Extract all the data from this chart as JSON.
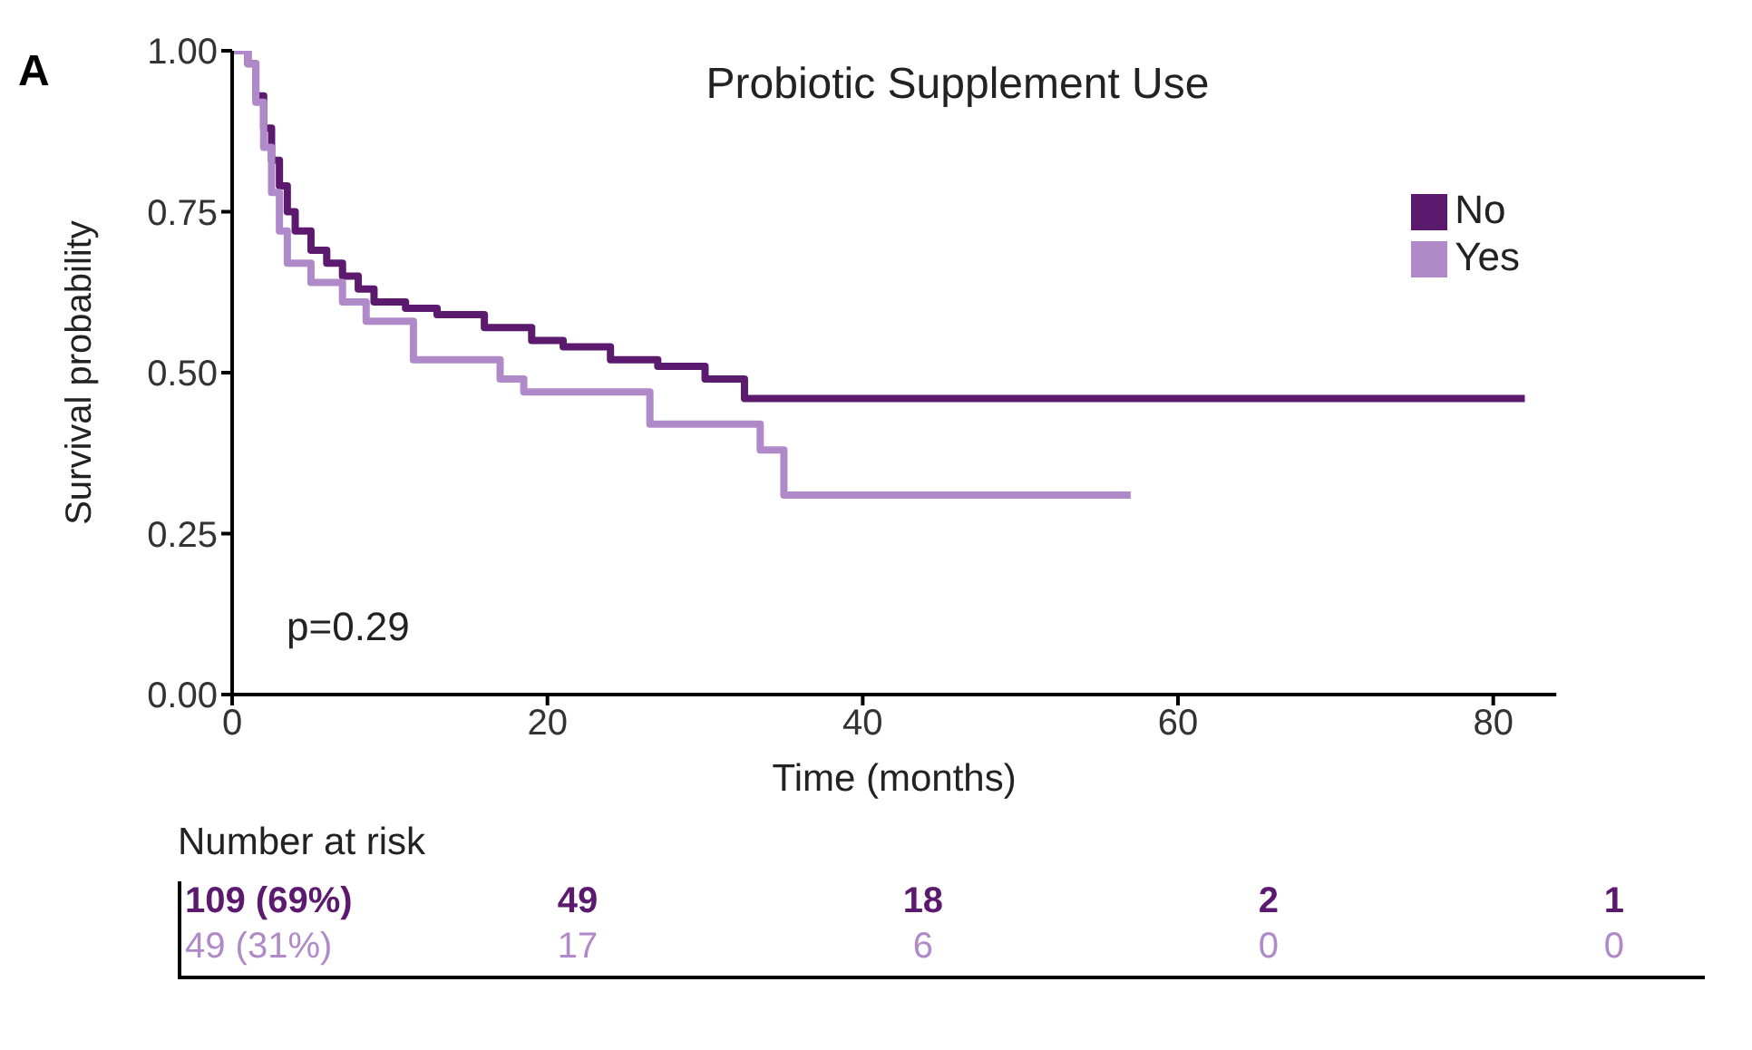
{
  "chart_data": {
    "type": "step",
    "title": "Probiotic Supplement Use",
    "xlabel": "Time (months)",
    "ylabel": "Survival probability",
    "series": [
      {
        "name": "No",
        "color": "#5b1a6e",
        "x": [
          0,
          1,
          1.5,
          2,
          2.5,
          3,
          3.5,
          4,
          5,
          6,
          7,
          8,
          9,
          11,
          13,
          16,
          19,
          21,
          24,
          27,
          30,
          32.5,
          82
        ],
        "values": [
          1,
          0.98,
          0.93,
          0.88,
          0.83,
          0.79,
          0.75,
          0.72,
          0.69,
          0.67,
          0.65,
          0.63,
          0.61,
          0.6,
          0.59,
          0.57,
          0.55,
          0.54,
          0.52,
          0.51,
          0.49,
          0.46,
          0.46
        ]
      },
      {
        "name": "Yes",
        "color": "#b08ac8",
        "x": [
          0,
          1,
          1.5,
          2,
          2.5,
          3,
          3.5,
          5,
          7,
          8.5,
          11.5,
          17,
          18.5,
          26.5,
          33.5,
          35,
          57
        ],
        "values": [
          1,
          0.98,
          0.92,
          0.85,
          0.78,
          0.72,
          0.67,
          0.64,
          0.61,
          0.58,
          0.52,
          0.49,
          0.47,
          0.42,
          0.38,
          0.31,
          0.31
        ]
      }
    ],
    "xlim": [
      0,
      84
    ],
    "xticks": [
      0,
      20,
      40,
      60,
      80
    ],
    "ylim": [
      0,
      1
    ],
    "yticks": [
      {
        "value": 0,
        "label": "0.00"
      },
      {
        "value": 0.25,
        "label": "0.25"
      },
      {
        "value": 0.5,
        "label": "0.50"
      },
      {
        "value": 0.75,
        "label": "0.75"
      },
      {
        "value": 1,
        "label": "1.00"
      }
    ],
    "grid": false,
    "legend": "top right",
    "marker": "none",
    "line_style": "solid",
    "annotations": [
      "A",
      "p=0.29",
      "Number at risk",
      "109 (69%)",
      "49",
      "18",
      "2",
      "1",
      "49 (31%)",
      "17",
      "6",
      "0",
      "0"
    ]
  }
}
